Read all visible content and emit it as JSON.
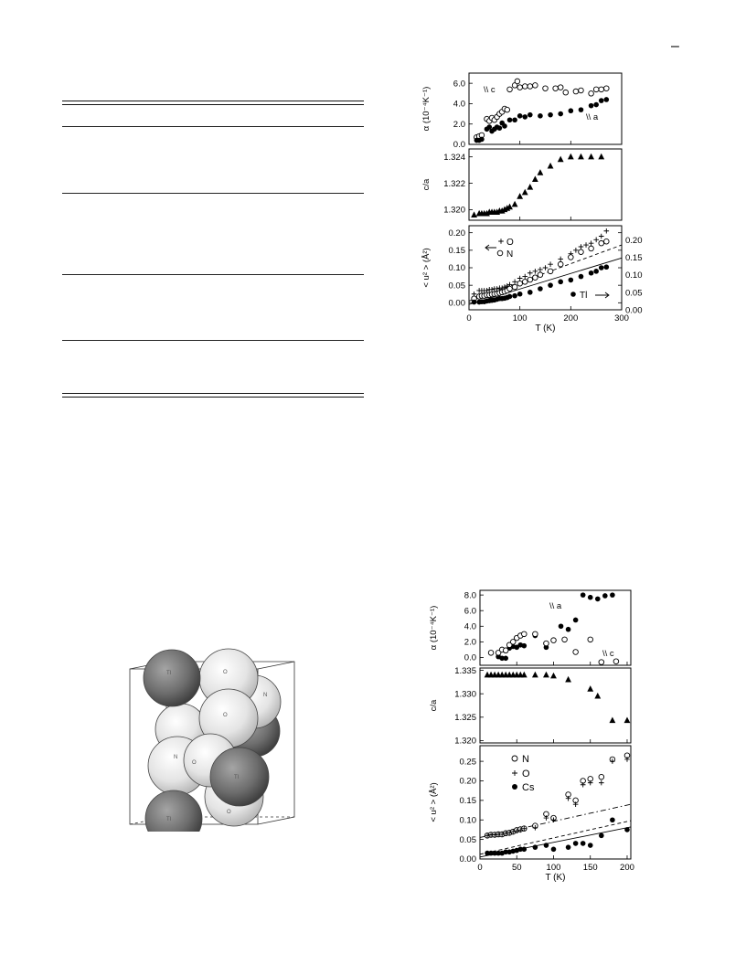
{
  "page_mark": "–",
  "chart_data": [
    {
      "type": "scatter",
      "panels": [
        {
          "id": "alpha",
          "ylabel": "α (10⁻⁴K⁻¹)",
          "ylim": [
            0,
            7
          ],
          "yticks": [
            "0.0",
            "2.0",
            "4.0",
            "6.0"
          ],
          "ytick_values": [
            0,
            2,
            4,
            6
          ],
          "annotations": [
            "\\\\ c",
            "\\\\ a"
          ],
          "series": [
            {
              "name": "\\\\ c",
              "marker": "open-circle",
              "x": [
                15,
                20,
                25,
                35,
                40,
                45,
                50,
                55,
                60,
                65,
                70,
                75,
                80,
                90,
                95,
                100,
                110,
                120,
                130,
                150,
                170,
                180,
                190,
                210,
                220,
                240,
                250,
                260,
                270
              ],
              "y": [
                0.7,
                0.8,
                0.9,
                2.5,
                2.3,
                2.6,
                2.4,
                2.7,
                3.0,
                3.2,
                3.5,
                3.4,
                5.4,
                5.8,
                6.2,
                5.6,
                5.7,
                5.7,
                5.8,
                5.5,
                5.5,
                5.6,
                5.1,
                5.2,
                5.3,
                5.0,
                5.4,
                5.4,
                5.5
              ]
            },
            {
              "name": "\\\\ a",
              "marker": "filled-circle",
              "x": [
                15,
                20,
                25,
                35,
                40,
                45,
                50,
                55,
                60,
                65,
                70,
                80,
                90,
                100,
                110,
                120,
                140,
                160,
                180,
                200,
                220,
                240,
                250,
                260,
                270
              ],
              "y": [
                0.4,
                0.4,
                0.5,
                1.5,
                1.7,
                1.3,
                1.5,
                1.7,
                1.6,
                2.1,
                1.8,
                2.4,
                2.4,
                2.8,
                2.7,
                2.9,
                2.8,
                2.9,
                3.0,
                3.3,
                3.4,
                3.8,
                3.9,
                4.3,
                4.4
              ]
            }
          ]
        },
        {
          "id": "c_over_a",
          "ylabel": "c/a",
          "ylim": [
            1.3192,
            1.3246
          ],
          "yticks": [
            "1.320",
            "1.322",
            "1.324"
          ],
          "ytick_values": [
            1.32,
            1.322,
            1.324
          ],
          "series": [
            {
              "name": "",
              "marker": "filled-triangle",
              "x": [
                10,
                20,
                25,
                30,
                35,
                40,
                45,
                50,
                55,
                60,
                65,
                70,
                75,
                80,
                90,
                100,
                110,
                120,
                130,
                140,
                160,
                180,
                200,
                220,
                240,
                260
              ],
              "y": [
                1.3196,
                1.3197,
                1.3197,
                1.3197,
                1.3197,
                1.3198,
                1.3198,
                1.3198,
                1.3198,
                1.3199,
                1.3199,
                1.32,
                1.3201,
                1.3202,
                1.3204,
                1.321,
                1.3213,
                1.3217,
                1.3223,
                1.3228,
                1.3233,
                1.3238,
                1.324,
                1.324,
                1.324,
                1.324
              ]
            }
          ]
        },
        {
          "id": "u2",
          "ylabel": "< u² > (Å²)",
          "ylim": [
            -0.02,
            0.22
          ],
          "yticks": [
            "0.00",
            "0.05",
            "0.10",
            "0.15",
            "0.20"
          ],
          "ytick_values": [
            0.0,
            0.05,
            0.1,
            0.15,
            0.2
          ],
          "right_yticks": [
            "0.00",
            "0.05",
            "0.10",
            "0.15",
            "0.20"
          ],
          "xlabel": "T (K)",
          "xlim": [
            0,
            300
          ],
          "xticks": [
            "0",
            "100",
            "200",
            "300"
          ],
          "xtick_values": [
            0,
            100,
            200,
            300
          ],
          "legend": [
            "O",
            "N",
            "Tl"
          ],
          "series": [
            {
              "name": "O",
              "marker": "plus",
              "x": [
                10,
                20,
                25,
                30,
                35,
                40,
                45,
                50,
                55,
                60,
                65,
                70,
                75,
                80,
                90,
                100,
                110,
                120,
                130,
                140,
                150,
                160,
                180,
                200,
                210,
                220,
                230,
                240,
                250,
                260,
                270
              ],
              "y": [
                0.025,
                0.035,
                0.035,
                0.035,
                0.035,
                0.038,
                0.038,
                0.04,
                0.04,
                0.042,
                0.042,
                0.045,
                0.048,
                0.052,
                0.06,
                0.07,
                0.075,
                0.085,
                0.09,
                0.095,
                0.1,
                0.11,
                0.125,
                0.14,
                0.15,
                0.16,
                0.165,
                0.17,
                0.18,
                0.19,
                0.205
              ]
            },
            {
              "name": "N",
              "marker": "open-circle",
              "x": [
                10,
                20,
                25,
                30,
                35,
                40,
                45,
                50,
                55,
                60,
                65,
                70,
                75,
                80,
                90,
                100,
                110,
                120,
                130,
                140,
                160,
                180,
                200,
                220,
                240,
                260,
                270
              ],
              "y": [
                0.012,
                0.018,
                0.02,
                0.02,
                0.022,
                0.022,
                0.024,
                0.025,
                0.026,
                0.028,
                0.03,
                0.032,
                0.035,
                0.04,
                0.045,
                0.055,
                0.06,
                0.066,
                0.072,
                0.08,
                0.09,
                0.11,
                0.13,
                0.145,
                0.155,
                0.17,
                0.175
              ]
            },
            {
              "name": "Tl",
              "marker": "filled-circle",
              "x": [
                10,
                20,
                25,
                30,
                35,
                40,
                45,
                50,
                55,
                60,
                65,
                70,
                75,
                80,
                90,
                100,
                120,
                140,
                160,
                180,
                200,
                220,
                240,
                250,
                260,
                270
              ],
              "y": [
                0.002,
                0.002,
                0.003,
                0.003,
                0.005,
                0.006,
                0.007,
                0.008,
                0.01,
                0.012,
                0.012,
                0.013,
                0.015,
                0.018,
                0.02,
                0.025,
                0.03,
                0.04,
                0.05,
                0.06,
                0.065,
                0.075,
                0.085,
                0.09,
                0.1,
                0.102
              ]
            }
          ],
          "fit_lines": [
            {
              "style": "dashed",
              "x": [
                0,
                300
              ],
              "y": [
                0.005,
                0.165
              ]
            },
            {
              "style": "solid",
              "x": [
                0,
                300
              ],
              "y": [
                -0.005,
                0.128
              ]
            }
          ]
        }
      ]
    },
    {
      "type": "scatter",
      "panels": [
        {
          "id": "alpha",
          "ylabel": "α (10⁻⁴K⁻¹)",
          "ylim": [
            -1.0,
            8.6
          ],
          "yticks": [
            "0.0",
            "2.0",
            "4.0",
            "6.0",
            "8.0"
          ],
          "ytick_values": [
            0,
            2,
            4,
            6,
            8
          ],
          "annotations": [
            "\\\\ a",
            "\\\\ c"
          ],
          "series": [
            {
              "name": "\\\\ a",
              "marker": "filled-circle",
              "x": [
                15,
                25,
                30,
                35,
                40,
                45,
                50,
                55,
                60,
                75,
                90,
                110,
                120,
                130,
                140,
                150,
                160,
                170,
                180
              ],
              "y": [
                0.6,
                0.1,
                -0.1,
                -0.1,
                1.2,
                1.4,
                1.3,
                1.6,
                1.5,
                2.8,
                1.3,
                4.0,
                3.6,
                4.8,
                8.0,
                7.7,
                7.5,
                7.9,
                8.0
              ]
            },
            {
              "name": "\\\\ c",
              "marker": "open-circle",
              "x": [
                15,
                25,
                30,
                35,
                40,
                45,
                50,
                55,
                60,
                75,
                90,
                100,
                115,
                130,
                150,
                165,
                185
              ],
              "y": [
                0.6,
                0.6,
                1.0,
                0.9,
                1.6,
                2.0,
                2.5,
                2.8,
                3.0,
                3.0,
                1.8,
                2.2,
                2.3,
                0.7,
                2.3,
                -0.6,
                -0.5
              ]
            }
          ]
        },
        {
          "id": "c_over_a",
          "ylabel": "c/a",
          "ylim": [
            1.3195,
            1.3355
          ],
          "yticks": [
            "1.320",
            "1.325",
            "1.330",
            "1.335"
          ],
          "ytick_values": [
            1.32,
            1.325,
            1.33,
            1.335
          ],
          "series": [
            {
              "name": "",
              "marker": "filled-triangle",
              "x": [
                10,
                15,
                20,
                25,
                30,
                35,
                40,
                45,
                50,
                55,
                60,
                75,
                90,
                100,
                120,
                150,
                160,
                180,
                200
              ],
              "y": [
                1.334,
                1.334,
                1.334,
                1.334,
                1.334,
                1.334,
                1.334,
                1.334,
                1.334,
                1.334,
                1.334,
                1.334,
                1.334,
                1.3338,
                1.333,
                1.331,
                1.3295,
                1.3243,
                1.3243
              ]
            }
          ]
        },
        {
          "id": "u2",
          "ylabel": "< u² > (Å²)",
          "ylim": [
            0.0,
            0.29
          ],
          "yticks": [
            "0.00",
            "0.05",
            "0.10",
            "0.15",
            "0.20",
            "0.25"
          ],
          "ytick_values": [
            0,
            0.05,
            0.1,
            0.15,
            0.2,
            0.25
          ],
          "xlabel": "T (K)",
          "xlim": [
            0,
            205
          ],
          "xticks": [
            "0",
            "50",
            "100",
            "150",
            "200"
          ],
          "xtick_values": [
            0,
            50,
            100,
            150,
            200
          ],
          "legend": [
            "N",
            "O",
            "Cs"
          ],
          "series": [
            {
              "name": "N",
              "marker": "open-circle",
              "x": [
                10,
                15,
                20,
                25,
                30,
                35,
                40,
                45,
                50,
                55,
                60,
                75,
                90,
                100,
                120,
                130,
                140,
                150,
                165,
                180,
                200
              ],
              "y": [
                0.06,
                0.062,
                0.062,
                0.063,
                0.063,
                0.066,
                0.067,
                0.07,
                0.074,
                0.076,
                0.078,
                0.085,
                0.115,
                0.105,
                0.165,
                0.15,
                0.2,
                0.205,
                0.21,
                0.255,
                0.265
              ]
            },
            {
              "name": "O",
              "marker": "plus",
              "x": [
                10,
                15,
                20,
                25,
                30,
                35,
                40,
                45,
                50,
                55,
                60,
                75,
                90,
                100,
                120,
                130,
                140,
                150,
                165,
                180,
                200
              ],
              "y": [
                0.06,
                0.062,
                0.062,
                0.063,
                0.063,
                0.066,
                0.067,
                0.07,
                0.072,
                0.074,
                0.078,
                0.08,
                0.105,
                0.1,
                0.155,
                0.14,
                0.19,
                0.195,
                0.195,
                0.25,
                0.255
              ]
            },
            {
              "name": "Cs",
              "marker": "filled-circle",
              "x": [
                10,
                15,
                20,
                25,
                30,
                35,
                40,
                45,
                50,
                55,
                60,
                75,
                90,
                100,
                120,
                130,
                140,
                150,
                165,
                180,
                200
              ],
              "y": [
                0.015,
                0.015,
                0.015,
                0.015,
                0.015,
                0.018,
                0.018,
                0.02,
                0.022,
                0.025,
                0.025,
                0.03,
                0.035,
                0.025,
                0.03,
                0.04,
                0.04,
                0.035,
                0.06,
                0.1,
                0.075
              ]
            }
          ],
          "fit_lines": [
            {
              "style": "dashdot",
              "x": [
                0,
                205
              ],
              "y": [
                0.055,
                0.14
              ]
            },
            {
              "style": "dashed",
              "x": [
                0,
                205
              ],
              "y": [
                0.012,
                0.098
              ]
            },
            {
              "style": "solid",
              "x": [
                0,
                205
              ],
              "y": [
                0.005,
                0.082
              ]
            }
          ]
        }
      ]
    }
  ],
  "structure_figure": {
    "atoms": [
      {
        "label": "Tl",
        "shade": "dark"
      },
      {
        "label": "O",
        "shade": "light"
      },
      {
        "label": "N",
        "shade": "light"
      },
      {
        "label": "O",
        "shade": "light"
      },
      {
        "label": "N",
        "shade": "light"
      },
      {
        "label": "O",
        "shade": "light"
      },
      {
        "label": "Tl",
        "shade": "dark"
      },
      {
        "label": "Tl",
        "shade": "dark"
      },
      {
        "label": "O",
        "shade": "light"
      }
    ]
  }
}
